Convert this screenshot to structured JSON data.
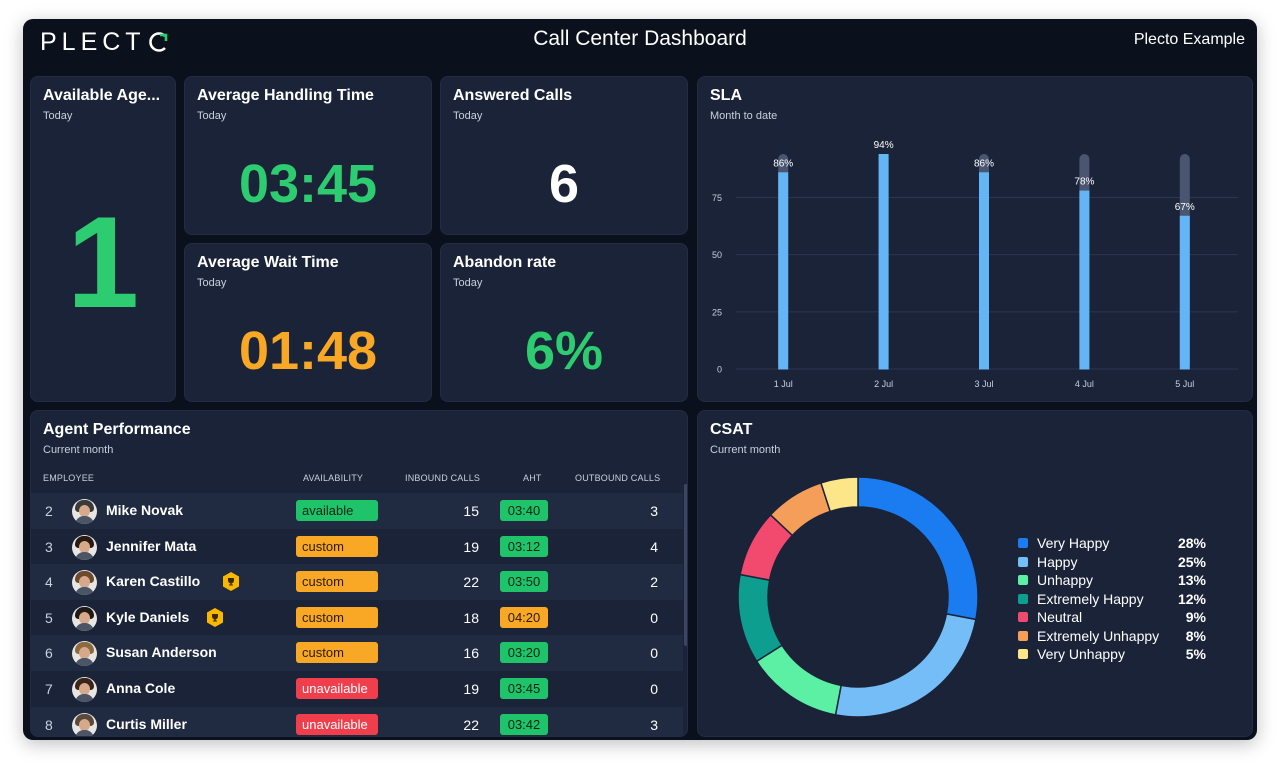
{
  "header": {
    "logo_text": "PLECT",
    "title": "Call Center Dashboard",
    "account": "Plecto Example"
  },
  "widgets": {
    "available_agents": {
      "title": "Available Age...",
      "subtitle": "Today",
      "value": "1",
      "color": "#2ecc71"
    },
    "avg_handling_time": {
      "title": "Average Handling Time",
      "subtitle": "Today",
      "value": "03:45",
      "color": "#2ecc71"
    },
    "answered_calls": {
      "title": "Answered Calls",
      "subtitle": "Today",
      "value": "6",
      "color": "#ffffff"
    },
    "avg_wait_time": {
      "title": "Average Wait Time",
      "subtitle": "Today",
      "value": "01:48",
      "color": "#f9a825"
    },
    "abandon_rate": {
      "title": "Abandon rate",
      "subtitle": "Today",
      "value": "6%",
      "color": "#2ecc71"
    }
  },
  "sla": {
    "title": "SLA",
    "subtitle": "Month to date",
    "chart_data": {
      "type": "bar",
      "categories": [
        "1 Jul",
        "2 Jul",
        "3 Jul",
        "4 Jul",
        "5 Jul"
      ],
      "values": [
        86,
        94,
        86,
        78,
        67
      ],
      "data_labels": [
        "86%",
        "94%",
        "86%",
        "78%",
        "67%"
      ],
      "target": 94,
      "yticks": [
        "0",
        "25",
        "50",
        "75"
      ],
      "ylim": [
        0,
        94
      ],
      "grid": true,
      "bar_color": "#64b5f6",
      "track_color": "#4a5570"
    }
  },
  "agents": {
    "title": "Agent Performance",
    "subtitle": "Current month",
    "columns": [
      "EMPLOYEE",
      "AVAILABILITY",
      "INBOUND CALLS",
      "AHT",
      "OUTBOUND CALLS"
    ],
    "rows": [
      {
        "rank": "2",
        "name": "Mike Novak",
        "trophy": false,
        "availability": "available",
        "inbound": "15",
        "aht": "03:40",
        "aht_status": "green",
        "outbound": "3",
        "hair": "#3a3a3a"
      },
      {
        "rank": "3",
        "name": "Jennifer Mata",
        "trophy": false,
        "availability": "custom",
        "inbound": "19",
        "aht": "03:12",
        "aht_status": "green",
        "outbound": "4",
        "hair": "#2a1a12"
      },
      {
        "rank": "4",
        "name": "Karen Castillo",
        "trophy": true,
        "availability": "custom",
        "inbound": "22",
        "aht": "03:50",
        "aht_status": "green",
        "outbound": "2",
        "hair": "#6b4a2e"
      },
      {
        "rank": "5",
        "name": "Kyle Daniels",
        "trophy": true,
        "availability": "custom",
        "inbound": "18",
        "aht": "04:20",
        "aht_status": "amber",
        "outbound": "0",
        "hair": "#1f1a16"
      },
      {
        "rank": "6",
        "name": "Susan Anderson",
        "trophy": false,
        "availability": "custom",
        "inbound": "16",
        "aht": "03:20",
        "aht_status": "green",
        "outbound": "0",
        "hair": "#8a6a40"
      },
      {
        "rank": "7",
        "name": "Anna Cole",
        "trophy": false,
        "availability": "unavailable",
        "inbound": "19",
        "aht": "03:45",
        "aht_status": "green",
        "outbound": "0",
        "hair": "#3a2418"
      },
      {
        "rank": "8",
        "name": "Curtis Miller",
        "trophy": false,
        "availability": "unavailable",
        "inbound": "22",
        "aht": "03:42",
        "aht_status": "green",
        "outbound": "3",
        "hair": "#5a4a3a"
      }
    ]
  },
  "csat": {
    "title": "CSAT",
    "subtitle": "Current month",
    "chart_data": {
      "type": "pie",
      "donut": true,
      "legend_position": "right",
      "series": [
        {
          "name": "Very Happy",
          "value": 28,
          "label": "28%",
          "color": "#1a7cf0"
        },
        {
          "name": "Happy",
          "value": 25,
          "label": "25%",
          "color": "#74bdf7"
        },
        {
          "name": "Unhappy",
          "value": 13,
          "label": "13%",
          "color": "#5cf0a4"
        },
        {
          "name": "Extremely Happy",
          "value": 12,
          "label": "12%",
          "color": "#0e9e8f"
        },
        {
          "name": "Neutral",
          "value": 9,
          "label": "9%",
          "color": "#f2496e"
        },
        {
          "name": "Extremely Unhappy",
          "value": 8,
          "label": "8%",
          "color": "#f59e5a"
        },
        {
          "name": "Very Unhappy",
          "value": 5,
          "label": "5%",
          "color": "#fde68a"
        }
      ]
    }
  }
}
